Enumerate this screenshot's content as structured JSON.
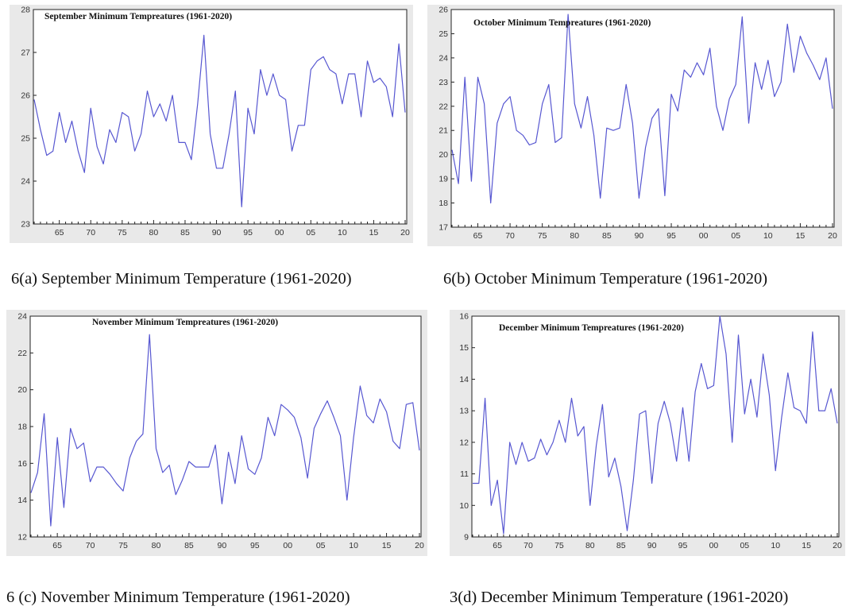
{
  "colors": {
    "series_line": "#5757d1",
    "panel_background": "#e9e9e9",
    "plot_background": "#ffffff",
    "axis": "#222222"
  },
  "captions": [
    "6(a) September Minimum Temperature (1961-2020)",
    "6(b) October Minimum Temperature (1961-2020)",
    "6 (c) November Minimum Temperature (1961-2020)",
    "3(d) December Minimum Temperature (1961-2020)"
  ],
  "chart_data": [
    {
      "type": "line",
      "title": "September Minimum Tempreatures (1961-2020)",
      "xlabel": "",
      "ylabel": "",
      "xlim": [
        1961,
        2020
      ],
      "ylim": [
        23,
        28
      ],
      "x_ticks": [
        1965,
        1970,
        1975,
        1980,
        1985,
        1990,
        1995,
        2000,
        2005,
        2010,
        2015,
        2020
      ],
      "x_tick_labels": [
        "65",
        "70",
        "75",
        "80",
        "85",
        "90",
        "95",
        "00",
        "05",
        "10",
        "15",
        "20"
      ],
      "y_ticks": [
        23,
        24,
        25,
        26,
        27,
        28
      ],
      "y_tick_labels": [
        "23",
        "24",
        "25",
        "26",
        "27",
        "28"
      ],
      "grid": false,
      "legend": "none",
      "x": [
        1961,
        1962,
        1963,
        1964,
        1965,
        1966,
        1967,
        1968,
        1969,
        1970,
        1971,
        1972,
        1973,
        1974,
        1975,
        1976,
        1977,
        1978,
        1979,
        1980,
        1981,
        1982,
        1983,
        1984,
        1985,
        1986,
        1987,
        1988,
        1989,
        1990,
        1991,
        1992,
        1993,
        1994,
        1995,
        1996,
        1997,
        1998,
        1999,
        2000,
        2001,
        2002,
        2003,
        2004,
        2005,
        2006,
        2007,
        2008,
        2009,
        2010,
        2011,
        2012,
        2013,
        2014,
        2015,
        2016,
        2017,
        2018,
        2019,
        2020
      ],
      "values": [
        25.9,
        25.2,
        24.6,
        24.7,
        25.6,
        24.9,
        25.4,
        24.7,
        24.2,
        25.7,
        24.8,
        24.4,
        25.2,
        24.9,
        25.6,
        25.5,
        24.7,
        25.1,
        26.1,
        25.5,
        25.8,
        25.4,
        26.0,
        24.9,
        24.9,
        24.5,
        25.8,
        27.4,
        25.1,
        24.3,
        24.3,
        25.1,
        26.1,
        23.4,
        25.7,
        25.1,
        26.6,
        26.0,
        26.5,
        26.0,
        25.9,
        24.7,
        25.3,
        25.3,
        26.6,
        26.8,
        26.9,
        26.6,
        26.5,
        25.8,
        26.5,
        26.5,
        25.5,
        26.8,
        26.3,
        26.4,
        26.2,
        25.5,
        27.2,
        25.6
      ]
    },
    {
      "type": "line",
      "title": "October Minimum Tempreatures (1961-2020)",
      "xlabel": "",
      "ylabel": "",
      "xlim": [
        1961,
        2020
      ],
      "ylim": [
        17,
        26
      ],
      "x_ticks": [
        1965,
        1970,
        1975,
        1980,
        1985,
        1990,
        1995,
        2000,
        2005,
        2010,
        2015,
        2020
      ],
      "x_tick_labels": [
        "65",
        "70",
        "75",
        "80",
        "85",
        "90",
        "95",
        "00",
        "05",
        "10",
        "15",
        "20"
      ],
      "y_ticks": [
        17,
        18,
        19,
        20,
        21,
        22,
        23,
        24,
        25,
        26
      ],
      "y_tick_labels": [
        "17",
        "18",
        "19",
        "20",
        "21",
        "22",
        "23",
        "24",
        "25",
        "26"
      ],
      "grid": false,
      "legend": "none",
      "x": [
        1961,
        1962,
        1963,
        1964,
        1965,
        1966,
        1967,
        1968,
        1969,
        1970,
        1971,
        1972,
        1973,
        1974,
        1975,
        1976,
        1977,
        1978,
        1979,
        1980,
        1981,
        1982,
        1983,
        1984,
        1985,
        1986,
        1987,
        1988,
        1989,
        1990,
        1991,
        1992,
        1993,
        1994,
        1995,
        1996,
        1997,
        1998,
        1999,
        2000,
        2001,
        2002,
        2003,
        2004,
        2005,
        2006,
        2007,
        2008,
        2009,
        2010,
        2011,
        2012,
        2013,
        2014,
        2015,
        2016,
        2017,
        2018,
        2019,
        2020
      ],
      "values": [
        20.2,
        18.8,
        23.2,
        18.9,
        23.2,
        22.1,
        18.0,
        21.3,
        22.1,
        22.4,
        21.0,
        20.8,
        20.4,
        20.5,
        22.1,
        22.9,
        20.5,
        20.7,
        25.8,
        22.1,
        21.1,
        22.4,
        20.8,
        18.2,
        21.1,
        21.0,
        21.1,
        22.9,
        21.3,
        18.2,
        20.3,
        21.5,
        21.9,
        18.3,
        22.5,
        21.8,
        23.5,
        23.2,
        23.8,
        23.3,
        24.4,
        22.0,
        21.0,
        22.3,
        22.9,
        25.7,
        21.3,
        23.8,
        22.7,
        23.9,
        22.4,
        23.0,
        25.4,
        23.4,
        24.9,
        24.2,
        23.7,
        23.1,
        24.0,
        21.9
      ]
    },
    {
      "type": "line",
      "title": "November Minimum Tempreatures (1961-2020)",
      "xlabel": "",
      "ylabel": "",
      "xlim": [
        1961,
        2020
      ],
      "ylim": [
        12,
        24
      ],
      "x_ticks": [
        1965,
        1970,
        1975,
        1980,
        1985,
        1990,
        1995,
        2000,
        2005,
        2010,
        2015,
        2020
      ],
      "x_tick_labels": [
        "65",
        "70",
        "75",
        "80",
        "85",
        "90",
        "95",
        "00",
        "05",
        "10",
        "15",
        "20"
      ],
      "y_ticks": [
        12,
        14,
        16,
        18,
        20,
        22,
        24
      ],
      "y_tick_labels": [
        "12",
        "14",
        "16",
        "18",
        "20",
        "22",
        "24"
      ],
      "grid": false,
      "legend": "none",
      "x": [
        1961,
        1962,
        1963,
        1964,
        1965,
        1966,
        1967,
        1968,
        1969,
        1970,
        1971,
        1972,
        1973,
        1974,
        1975,
        1976,
        1977,
        1978,
        1979,
        1980,
        1981,
        1982,
        1983,
        1984,
        1985,
        1986,
        1987,
        1988,
        1989,
        1990,
        1991,
        1992,
        1993,
        1994,
        1995,
        1996,
        1997,
        1998,
        1999,
        2000,
        2001,
        2002,
        2003,
        2004,
        2005,
        2006,
        2007,
        2008,
        2009,
        2010,
        2011,
        2012,
        2013,
        2014,
        2015,
        2016,
        2017,
        2018,
        2019,
        2020
      ],
      "values": [
        14.4,
        15.5,
        18.7,
        12.6,
        17.4,
        13.6,
        17.9,
        16.8,
        17.1,
        15.0,
        15.8,
        15.8,
        15.4,
        14.9,
        14.5,
        16.3,
        17.2,
        17.6,
        23.0,
        16.8,
        15.5,
        15.9,
        14.3,
        15.1,
        16.1,
        15.8,
        15.8,
        15.8,
        17.0,
        13.8,
        16.6,
        14.9,
        17.5,
        15.7,
        15.4,
        16.3,
        18.5,
        17.5,
        19.2,
        18.9,
        18.5,
        17.4,
        15.2,
        17.9,
        18.7,
        19.4,
        18.5,
        17.5,
        14.0,
        17.4,
        20.2,
        18.6,
        18.2,
        19.5,
        18.8,
        17.2,
        16.8,
        19.2,
        19.3,
        16.7
      ]
    },
    {
      "type": "line",
      "title": "December Minimum Tempreatures (1961-2020)",
      "xlabel": "",
      "ylabel": "",
      "xlim": [
        1961,
        2020
      ],
      "ylim": [
        9,
        16
      ],
      "x_ticks": [
        1965,
        1970,
        1975,
        1980,
        1985,
        1990,
        1995,
        2000,
        2005,
        2010,
        2015,
        2020
      ],
      "x_tick_labels": [
        "65",
        "70",
        "75",
        "80",
        "85",
        "90",
        "95",
        "00",
        "05",
        "10",
        "15",
        "20"
      ],
      "y_ticks": [
        9,
        10,
        11,
        12,
        13,
        14,
        15,
        16
      ],
      "y_tick_labels": [
        "9",
        "10",
        "11",
        "12",
        "13",
        "14",
        "15",
        "16"
      ],
      "grid": false,
      "legend": "none",
      "x": [
        1961,
        1962,
        1963,
        1964,
        1965,
        1966,
        1967,
        1968,
        1969,
        1970,
        1971,
        1972,
        1973,
        1974,
        1975,
        1976,
        1977,
        1978,
        1979,
        1980,
        1981,
        1982,
        1983,
        1984,
        1985,
        1986,
        1987,
        1988,
        1989,
        1990,
        1991,
        1992,
        1993,
        1994,
        1995,
        1996,
        1997,
        1998,
        1999,
        2000,
        2001,
        2002,
        2003,
        2004,
        2005,
        2006,
        2007,
        2008,
        2009,
        2010,
        2011,
        2012,
        2013,
        2014,
        2015,
        2016,
        2017,
        2018,
        2019,
        2020
      ],
      "values": [
        10.7,
        10.7,
        13.4,
        10.0,
        10.8,
        9.1,
        12.0,
        11.3,
        12.0,
        11.4,
        11.5,
        12.1,
        11.6,
        12.0,
        12.7,
        12.0,
        13.4,
        12.2,
        12.5,
        10.0,
        11.9,
        13.2,
        10.9,
        11.5,
        10.6,
        9.2,
        10.8,
        12.9,
        13.0,
        10.7,
        12.6,
        13.3,
        12.6,
        11.4,
        13.1,
        11.4,
        13.6,
        14.5,
        13.7,
        13.8,
        16.0,
        14.8,
        12.0,
        15.4,
        12.9,
        14.0,
        12.8,
        14.8,
        13.5,
        11.1,
        12.8,
        14.2,
        13.1,
        13.0,
        12.6,
        15.5,
        13.0,
        13.0,
        13.7,
        12.6
      ]
    }
  ]
}
